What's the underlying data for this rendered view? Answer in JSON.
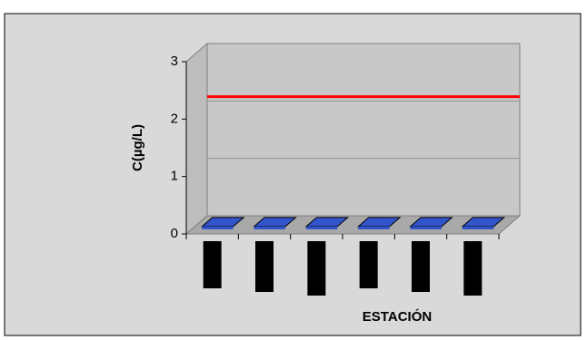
{
  "chart_data": {
    "type": "bar",
    "categories": [
      null,
      null,
      null,
      null,
      null,
      null
    ],
    "series": [
      {
        "type": "bar",
        "color": "#3355cc",
        "values": [
          0.05,
          0.05,
          0.05,
          0.05,
          0.05,
          0.05
        ]
      },
      {
        "type": "line",
        "color": "#ff0000",
        "values": [
          2.2,
          2.2,
          2.2,
          2.2,
          2.2,
          2.2
        ]
      }
    ],
    "ylim": [
      0,
      3
    ],
    "yticks": [
      0,
      1,
      2,
      3
    ],
    "grid": true,
    "y_label": "C(µg/L)",
    "x_label": "ESTACIÓN"
  }
}
